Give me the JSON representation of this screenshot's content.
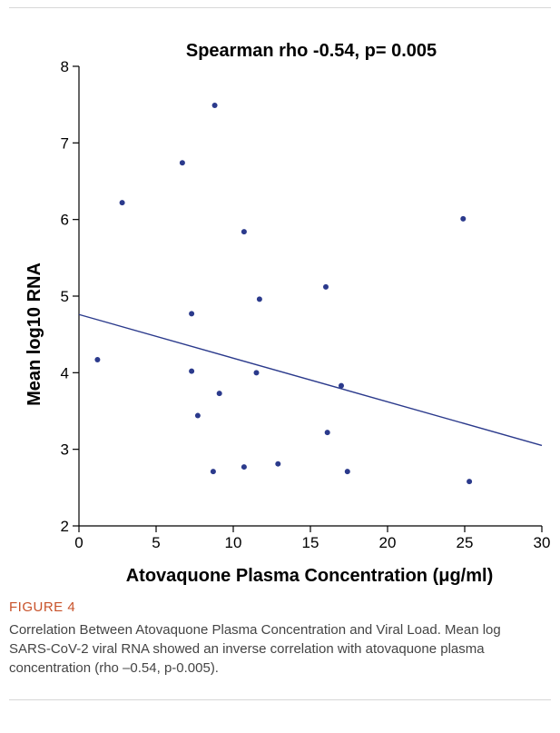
{
  "chart_data": {
    "type": "scatter",
    "title": "Spearman rho -0.54, p= 0.005",
    "xlabel": "Atovaquone Plasma Concentration (μg/ml)",
    "ylabel": "Mean log10 RNA",
    "xlim": [
      0,
      30
    ],
    "ylim": [
      2,
      8
    ],
    "x_ticks": [
      0,
      5,
      10,
      15,
      20,
      25,
      30
    ],
    "y_ticks": [
      2,
      3,
      4,
      5,
      6,
      7,
      8
    ],
    "grid": false,
    "points": [
      {
        "x": 1.2,
        "y": 4.17
      },
      {
        "x": 2.8,
        "y": 6.22
      },
      {
        "x": 6.7,
        "y": 6.74
      },
      {
        "x": 7.3,
        "y": 4.77
      },
      {
        "x": 7.3,
        "y": 4.02
      },
      {
        "x": 7.7,
        "y": 3.44
      },
      {
        "x": 8.7,
        "y": 2.71
      },
      {
        "x": 8.8,
        "y": 7.49
      },
      {
        "x": 9.1,
        "y": 3.73
      },
      {
        "x": 10.7,
        "y": 5.84
      },
      {
        "x": 10.7,
        "y": 2.77
      },
      {
        "x": 11.5,
        "y": 4.0
      },
      {
        "x": 11.7,
        "y": 4.96
      },
      {
        "x": 12.9,
        "y": 2.81
      },
      {
        "x": 16.0,
        "y": 5.12
      },
      {
        "x": 16.1,
        "y": 3.22
      },
      {
        "x": 17.0,
        "y": 3.83
      },
      {
        "x": 17.4,
        "y": 2.71
      },
      {
        "x": 24.9,
        "y": 6.01
      },
      {
        "x": 25.3,
        "y": 2.58
      }
    ],
    "trendline": {
      "x": [
        0,
        30
      ],
      "y": [
        4.76,
        3.05
      ]
    },
    "marker_color": "#2b3a8c",
    "line_color": "#2b3a8c"
  },
  "caption": {
    "label": "FIGURE 4",
    "text": "Correlation Between Atovaquone Plasma Concentration and Viral Load. Mean log SARS-CoV-2 viral RNA showed an inverse correlation with atovaquone plasma concentration (rho –0.54, p-0.005)."
  },
  "colors": {
    "figure_label": "#c8522a",
    "caption_text": "#444444"
  }
}
